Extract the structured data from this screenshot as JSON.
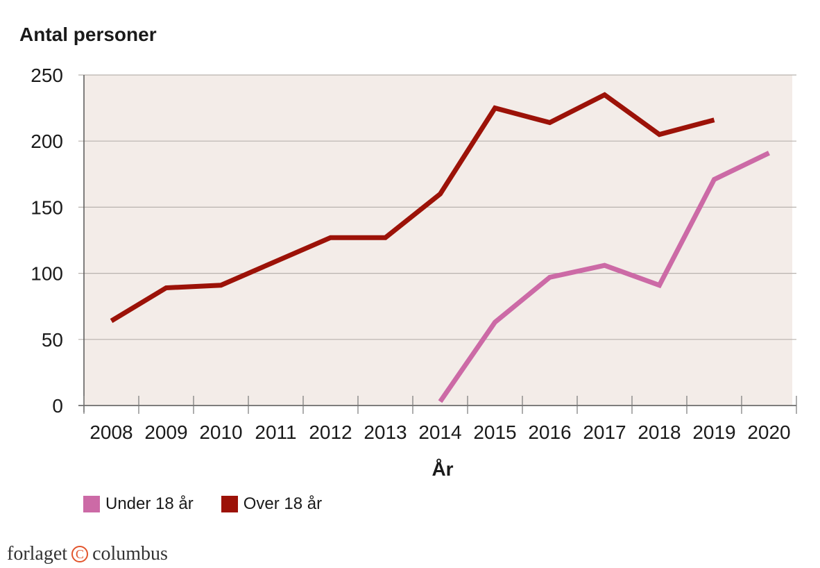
{
  "chart_data": {
    "type": "line",
    "ylabel": "Antal personer",
    "xlabel": "År",
    "categories": [
      "2008",
      "2009",
      "2010",
      "2011",
      "2012",
      "2013",
      "2014",
      "2015",
      "2016",
      "2017",
      "2018",
      "2019",
      "2020"
    ],
    "yticks": [
      "0",
      "50",
      "100",
      "150",
      "200",
      "250"
    ],
    "ylim": [
      0,
      250
    ],
    "grid": "horizontal",
    "legend_position": "bottom-left",
    "background_color": "#f3ece8",
    "series": [
      {
        "name": "Under 18 år",
        "color": "#cc6aa6",
        "values": [
          null,
          null,
          null,
          null,
          null,
          null,
          3,
          63,
          97,
          106,
          91,
          171,
          191
        ]
      },
      {
        "name": "Over 18 år",
        "color": "#9c1208",
        "values": [
          64,
          89,
          91,
          109,
          127,
          127,
          160,
          225,
          214,
          235,
          205,
          216,
          null
        ]
      }
    ]
  },
  "publisher": {
    "name_left": "forlaget",
    "mark": "C",
    "name_right": "columbus"
  }
}
